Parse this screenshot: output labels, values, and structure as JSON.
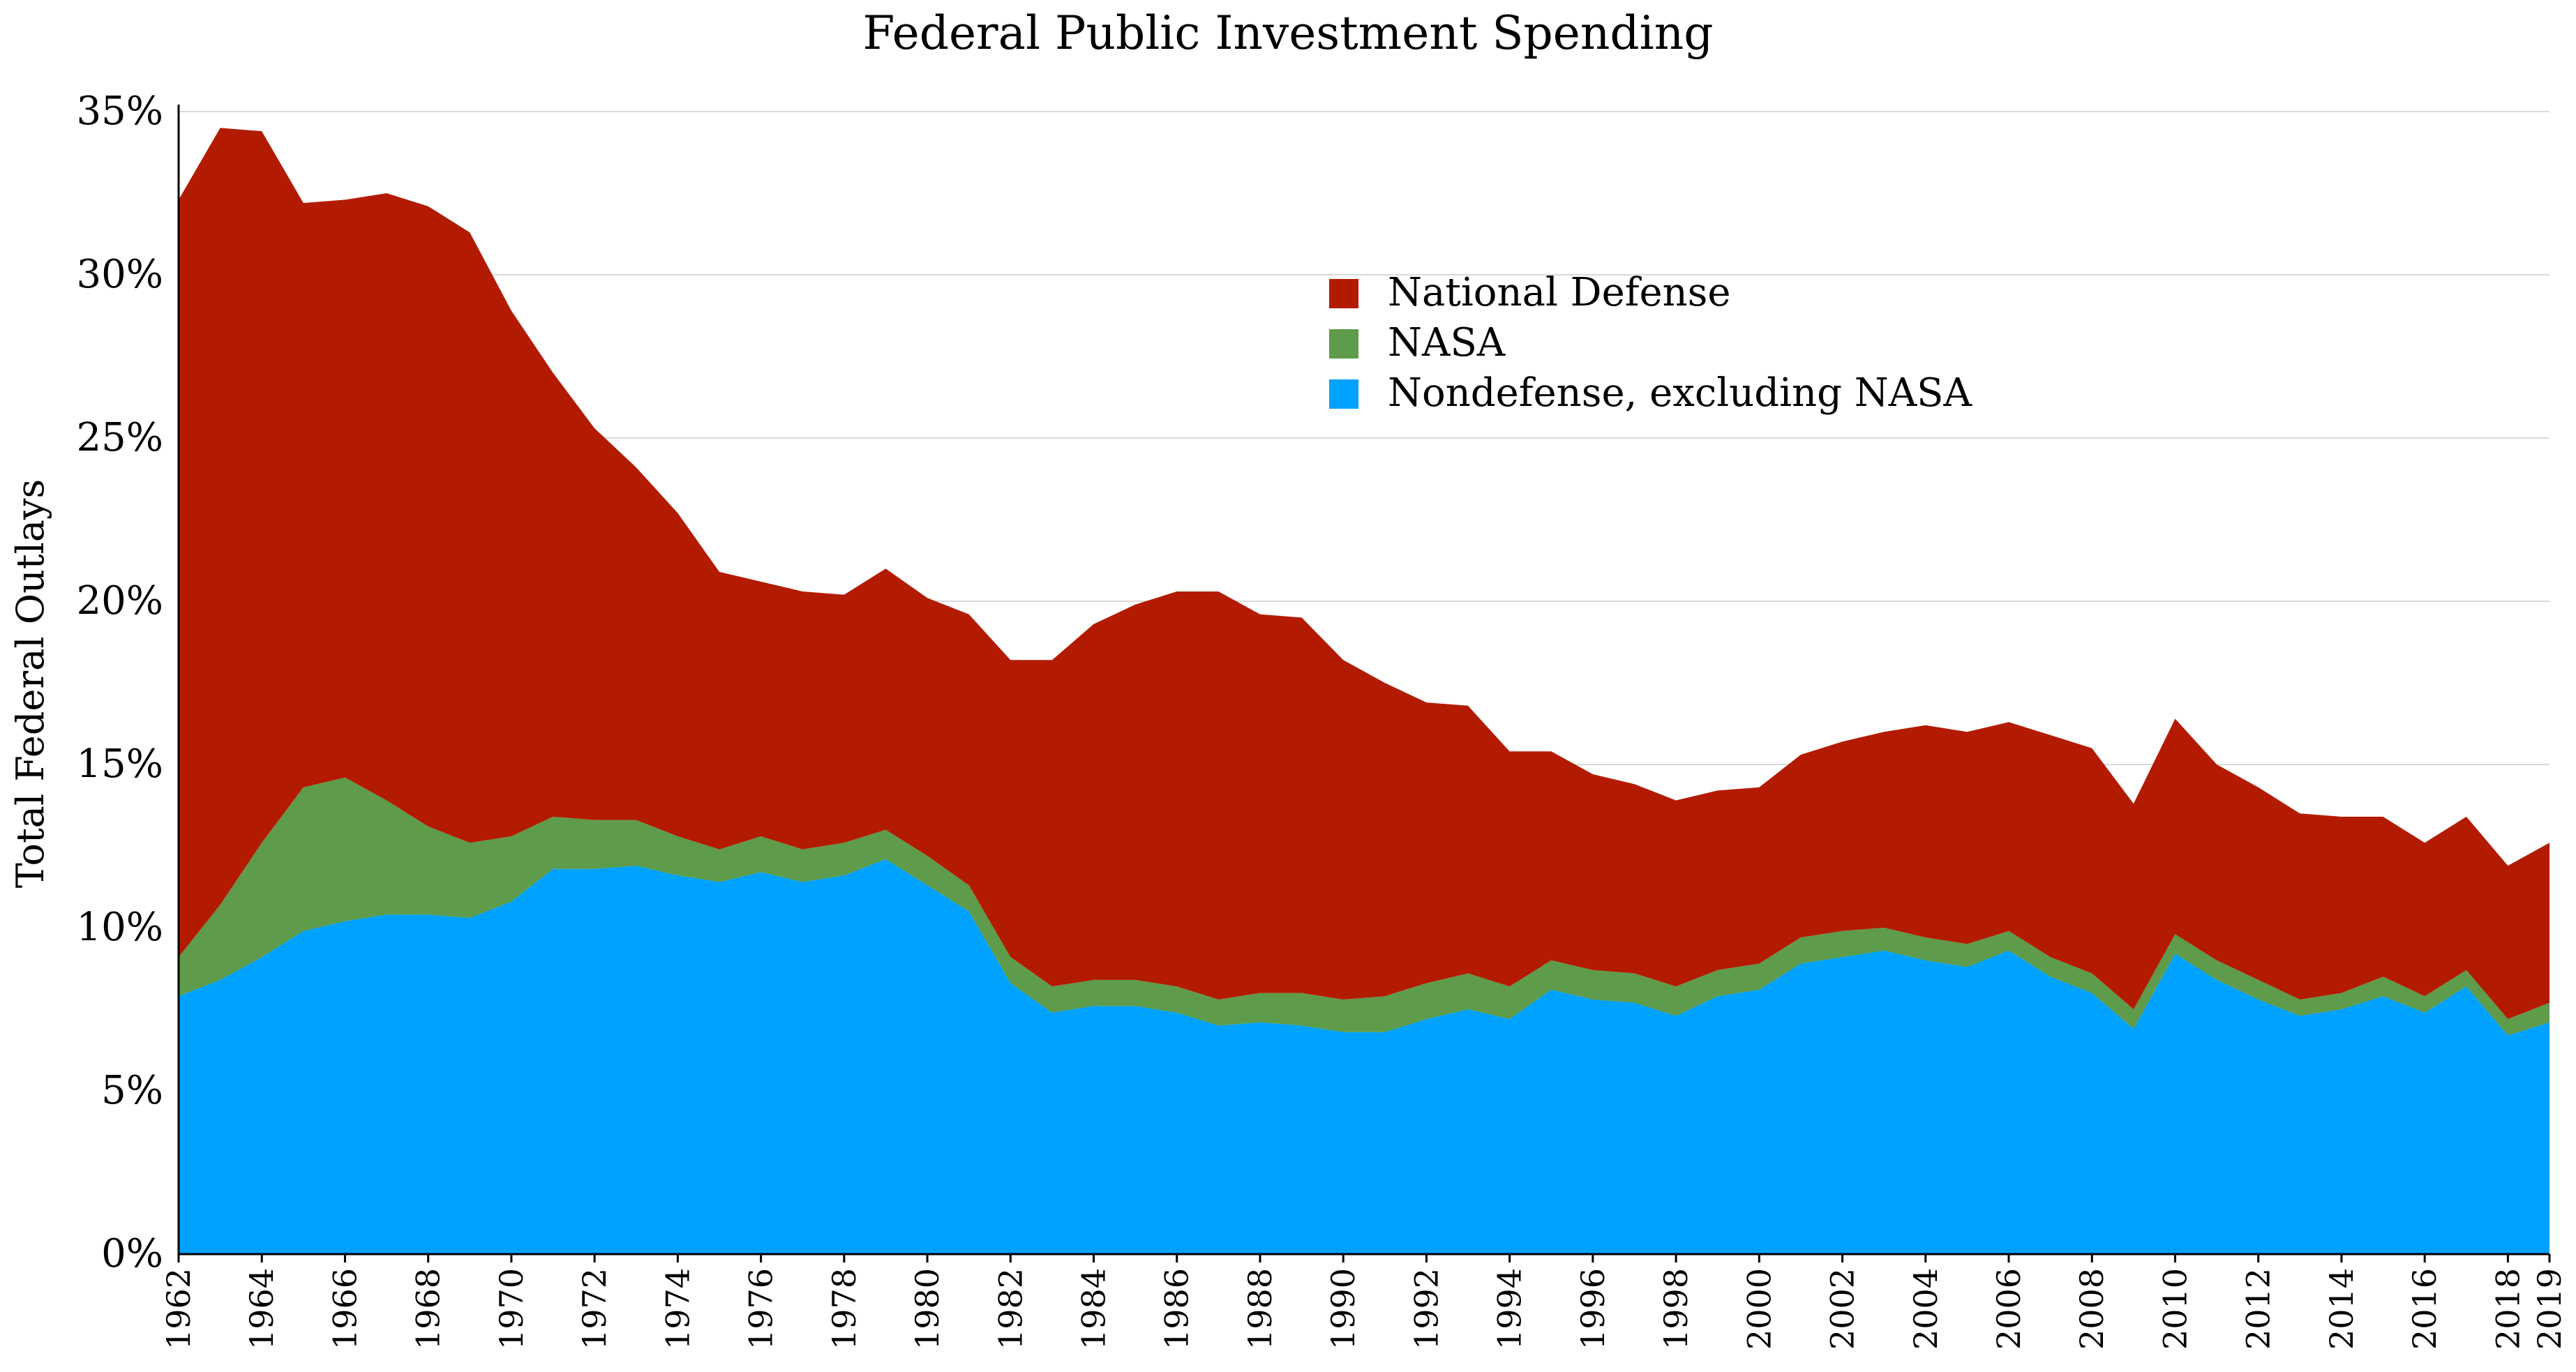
{
  "chart_data": {
    "type": "area",
    "stacked": true,
    "title": "Federal Public Investment Spending",
    "xlabel": "",
    "ylabel": "Total Federal Outlays",
    "ylim": [
      0,
      35
    ],
    "yticks": [
      0,
      5,
      10,
      15,
      20,
      25,
      30,
      35
    ],
    "ytick_labels": [
      "0%",
      "5%",
      "10%",
      "15%",
      "20%",
      "25%",
      "30%",
      "35%"
    ],
    "xlim": [
      1962,
      2019
    ],
    "xticks": [
      1962,
      1964,
      1966,
      1968,
      1970,
      1972,
      1974,
      1976,
      1978,
      1980,
      1982,
      1984,
      1986,
      1988,
      1990,
      1992,
      1994,
      1996,
      1998,
      2000,
      2002,
      2004,
      2006,
      2008,
      2010,
      2012,
      2014,
      2016,
      2018,
      2019
    ],
    "grid": true,
    "legend_position": "upper-center",
    "x": [
      1962,
      1963,
      1964,
      1965,
      1966,
      1967,
      1968,
      1969,
      1970,
      1971,
      1972,
      1973,
      1974,
      1975,
      1976,
      1977,
      1978,
      1979,
      1980,
      1981,
      1982,
      1983,
      1984,
      1985,
      1986,
      1987,
      1988,
      1989,
      1990,
      1991,
      1992,
      1993,
      1994,
      1995,
      1996,
      1997,
      1998,
      1999,
      2000,
      2001,
      2002,
      2003,
      2004,
      2005,
      2006,
      2007,
      2008,
      2009,
      2010,
      2011,
      2012,
      2013,
      2014,
      2015,
      2016,
      2017,
      2018,
      2019
    ],
    "series": [
      {
        "name": "Nondefense, excluding NASA",
        "color": "#00a2ff",
        "values": [
          7.9,
          8.4,
          9.1,
          9.9,
          10.2,
          10.4,
          10.4,
          10.3,
          10.8,
          11.8,
          11.8,
          11.9,
          11.6,
          11.4,
          11.7,
          11.4,
          11.6,
          12.1,
          11.3,
          10.5,
          8.3,
          7.4,
          7.6,
          7.6,
          7.4,
          7.0,
          7.1,
          7.0,
          6.8,
          6.8,
          7.2,
          7.5,
          7.2,
          8.1,
          7.8,
          7.7,
          7.3,
          7.9,
          8.1,
          8.9,
          9.1,
          9.3,
          9.0,
          8.8,
          9.3,
          8.5,
          8.0,
          6.9,
          9.2,
          8.4,
          7.8,
          7.3,
          7.5,
          7.9,
          7.4,
          8.2,
          6.7,
          7.1
        ]
      },
      {
        "name": "NASA",
        "color": "#5e9b4b",
        "values": [
          1.2,
          2.3,
          3.5,
          4.4,
          4.4,
          3.5,
          2.7,
          2.3,
          2.0,
          1.6,
          1.5,
          1.4,
          1.2,
          1.0,
          1.1,
          1.0,
          1.0,
          0.9,
          0.9,
          0.8,
          0.8,
          0.8,
          0.8,
          0.8,
          0.8,
          0.8,
          0.9,
          1.0,
          1.0,
          1.1,
          1.1,
          1.1,
          1.0,
          0.9,
          0.9,
          0.9,
          0.9,
          0.8,
          0.8,
          0.8,
          0.8,
          0.7,
          0.7,
          0.7,
          0.6,
          0.6,
          0.6,
          0.6,
          0.6,
          0.6,
          0.6,
          0.5,
          0.5,
          0.6,
          0.5,
          0.5,
          0.5,
          0.6
        ]
      },
      {
        "name": "National Defense",
        "color": "#b31b00",
        "values": [
          23.2,
          23.8,
          21.8,
          17.9,
          17.7,
          18.6,
          19.0,
          18.7,
          16.1,
          13.6,
          12.0,
          10.8,
          9.9,
          8.5,
          7.8,
          7.9,
          7.6,
          8.0,
          7.9,
          8.3,
          9.1,
          10.0,
          10.9,
          11.5,
          12.1,
          12.5,
          11.6,
          11.5,
          10.4,
          9.6,
          8.6,
          8.2,
          7.2,
          6.4,
          6.0,
          5.8,
          5.7,
          5.5,
          5.4,
          5.6,
          5.8,
          6.0,
          6.5,
          6.5,
          6.4,
          6.8,
          6.9,
          6.3,
          6.6,
          6.0,
          5.9,
          5.7,
          5.4,
          4.9,
          4.7,
          4.7,
          4.7,
          4.9
        ]
      }
    ],
    "legend": [
      {
        "name": "National Defense",
        "color": "#b31b00"
      },
      {
        "name": "NASA",
        "color": "#5e9b4b"
      },
      {
        "name": "Nondefense, excluding NASA",
        "color": "#00a2ff"
      }
    ]
  }
}
